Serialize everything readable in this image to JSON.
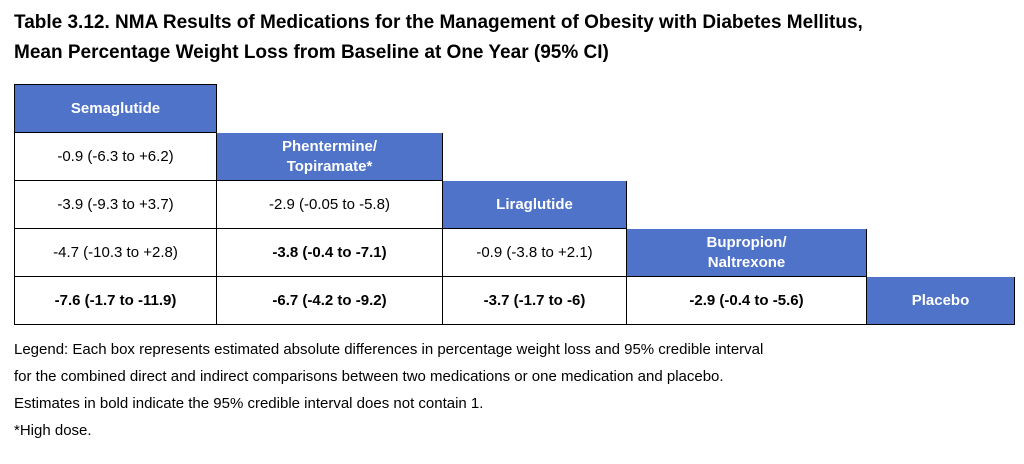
{
  "title": {
    "line1": "Table 3.12. NMA Results of Medications for the Management of Obesity with Diabetes Mellitus,",
    "line2": "Mean Percentage Weight Loss from Baseline at One Year (95% CI)"
  },
  "headers": {
    "semaglutide": "Semaglutide",
    "phentermine_line1": "Phentermine/",
    "phentermine_line2": "Topiramate*",
    "liraglutide": "Liraglutide",
    "bupropion_line1": "Bupropion/",
    "bupropion_line2": "Naltrexone",
    "placebo": "Placebo"
  },
  "rows": {
    "r1": {
      "c1": "-0.9 (-6.3 to +6.2)"
    },
    "r2": {
      "c1": "-3.9 (-9.3 to +3.7)",
      "c2": "-2.9 (-0.05 to -5.8)"
    },
    "r3": {
      "c1": "-4.7 (-10.3 to +2.8)",
      "c2": "-3.8 (-0.4 to -7.1)",
      "c3": "-0.9 (-3.8 to +2.1)"
    },
    "r4": {
      "c1": "-7.6 (-1.7 to -11.9)",
      "c2": "-6.7 (-4.2 to -9.2)",
      "c3": "-3.7 (-1.7 to -6)",
      "c4": "-2.9 (-0.4 to -5.6)"
    }
  },
  "legend": {
    "line1": "Legend: Each box represents estimated absolute differences in percentage weight loss and 95% credible interval",
    "line2": "for the combined direct and indirect comparisons between two medications or one medication and placebo.",
    "line3": "Estimates in bold indicate the 95% credible interval does not contain 1.",
    "line4": "*High dose."
  }
}
